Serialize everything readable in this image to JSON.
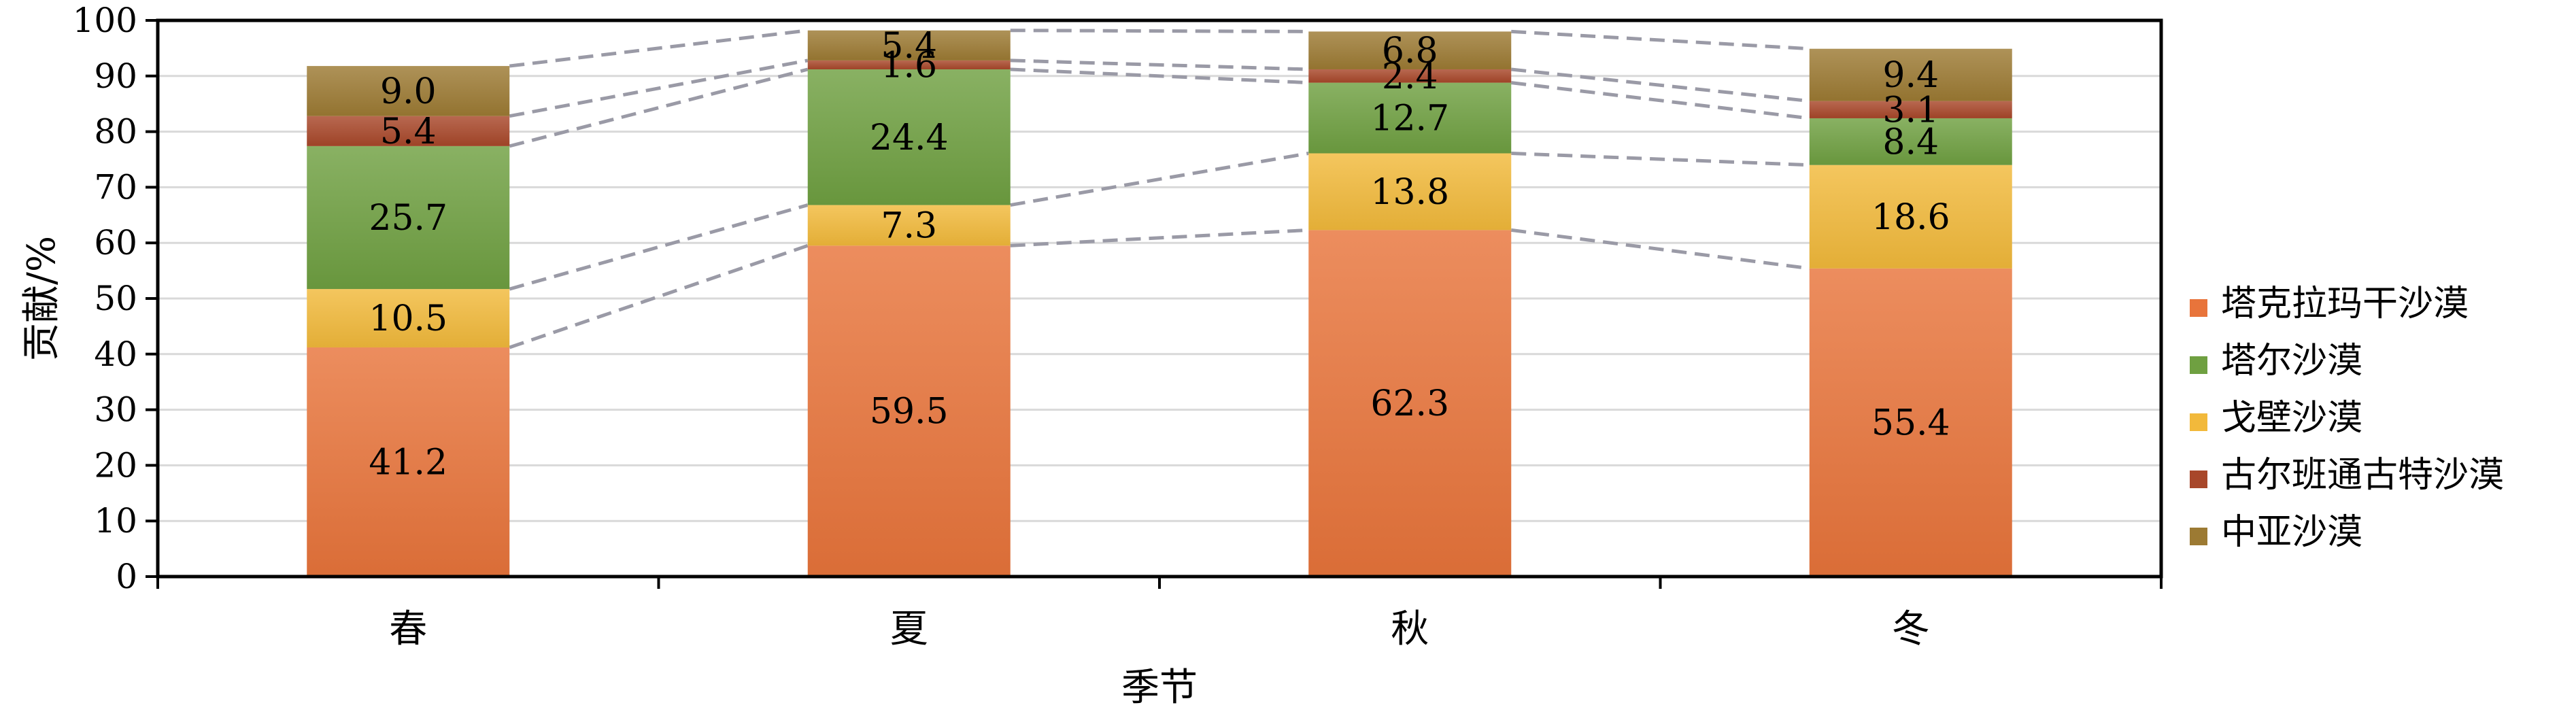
{
  "chart_data": {
    "type": "bar",
    "stacked": true,
    "xlabel": "季节",
    "ylabel": "贡献/%",
    "ylim": [
      0,
      100
    ],
    "yticks": [
      0,
      10,
      20,
      30,
      40,
      50,
      60,
      70,
      80,
      90,
      100
    ],
    "grid": true,
    "legend_position": "right",
    "connector_lines": "dashed gray lines linking segment boundaries between adjacent bars",
    "categories": [
      "春",
      "夏",
      "秋",
      "冬"
    ],
    "series": [
      {
        "name": "塔克拉玛干沙漠",
        "color": "#E8743B",
        "values": [
          41.2,
          59.5,
          62.3,
          55.4
        ]
      },
      {
        "name": "戈壁沙漠",
        "color": "#F2B93B",
        "values": [
          10.5,
          7.3,
          13.8,
          18.6
        ]
      },
      {
        "name": "塔尔沙漠",
        "color": "#6FA041",
        "values": [
          25.7,
          24.4,
          12.7,
          8.4
        ]
      },
      {
        "name": "古尔班通古特沙漠",
        "color": "#A8472A",
        "values": [
          5.4,
          1.6,
          2.4,
          3.1
        ]
      },
      {
        "name": "中亚沙漠",
        "color": "#9C7A33",
        "values": [
          9.0,
          5.4,
          6.8,
          9.4
        ]
      }
    ],
    "legend_order": [
      "塔克拉玛干沙漠",
      "塔尔沙漠",
      "戈壁沙漠",
      "古尔班通古特沙漠",
      "中亚沙漠"
    ]
  }
}
